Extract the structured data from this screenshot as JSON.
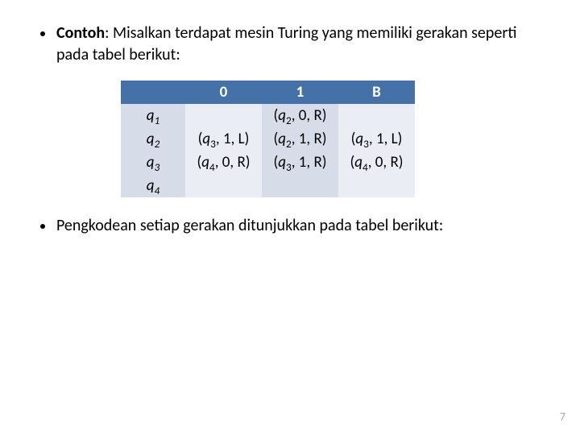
{
  "bullets": {
    "b1_strong": "Contoh",
    "b1_rest": ": Misalkan terdapat mesin Turing yang memiliki gerakan seperti pada tabel berikut:",
    "b2": "Pengkodean setiap gerakan ditunjukkan pada tabel berikut:"
  },
  "table": {
    "headers": {
      "c0": "",
      "c1": "0",
      "c2": "1",
      "c3": "B"
    },
    "rows": [
      {
        "head_base": "q",
        "head_sub": "1",
        "c1": "",
        "c2_open": "(",
        "c2_q": "q",
        "c2_sub": "2",
        "c2_rest": ", 0, R)",
        "c3": ""
      },
      {
        "head_base": "q",
        "head_sub": "2",
        "c1_open": "(",
        "c1_q": "q",
        "c1_sub": "3",
        "c1_rest": ", 1, L)",
        "c2_open": "(",
        "c2_q": "q",
        "c2_sub": "2",
        "c2_rest": ", 1, R)",
        "c3_open": "(",
        "c3_q": "q",
        "c3_sub": "3",
        "c3_rest": ", 1, L)"
      },
      {
        "head_base": "q",
        "head_sub": "3",
        "c1_open": "(",
        "c1_q": "q",
        "c1_sub": "4",
        "c1_rest": ", 0, R)",
        "c2_open": "(",
        "c2_q": "q",
        "c2_sub": "3",
        "c2_rest": ", 1, R)",
        "c3_open": "(",
        "c3_q": "q",
        "c3_sub": "4",
        "c3_rest": ", 0, R)"
      },
      {
        "head_base": "q",
        "head_sub": "4",
        "c1": "",
        "c2": "",
        "c3": ""
      }
    ]
  },
  "page_number": "7",
  "colors": {
    "header_bg": "#4472a8",
    "row_bg_a": "#d6dce8",
    "row_bg_b": "#eaedf4",
    "pagenum": "#a6a6a6"
  }
}
